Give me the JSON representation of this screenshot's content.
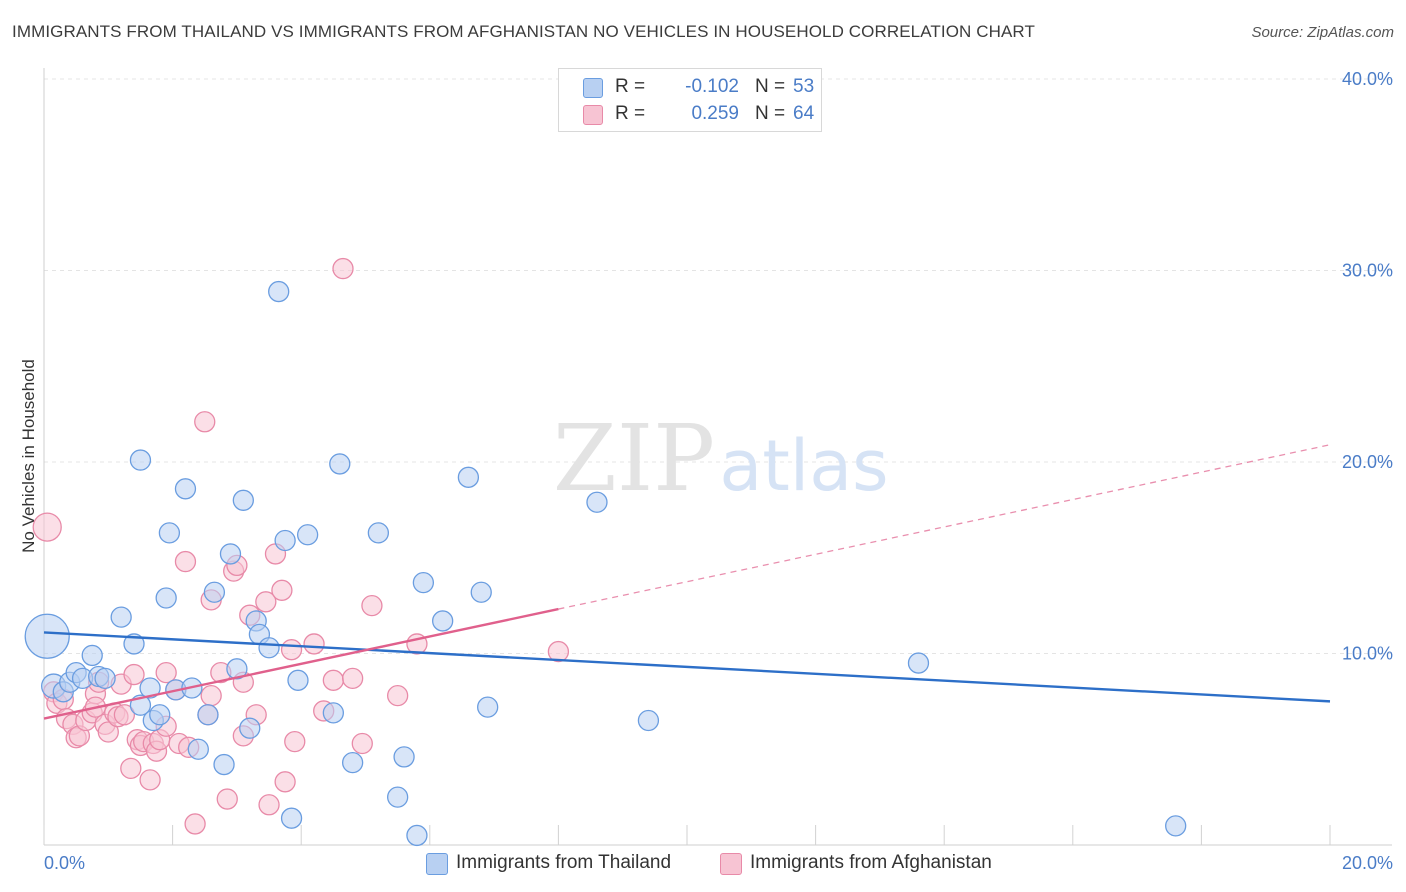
{
  "header": {
    "title": "IMMIGRANTS FROM THAILAND VS IMMIGRANTS FROM AFGHANISTAN NO VEHICLES IN HOUSEHOLD CORRELATION CHART",
    "source": "Source: ZipAtlas.com"
  },
  "watermark": {
    "zip": "ZIP",
    "atlas": "atlas"
  },
  "legend": {
    "thailand": {
      "r_label": "R =",
      "r_value": "-0.102",
      "n_label": "N =",
      "n_value": "53"
    },
    "afghanistan": {
      "r_label": "R =",
      "r_value": "0.259",
      "n_label": "N =",
      "n_value": "64"
    }
  },
  "bottom_legend": {
    "thailand": "Immigrants from Thailand",
    "afghanistan": "Immigrants from Afghanistan"
  },
  "colors": {
    "thailand_fill": "#b8d0f2",
    "thailand_stroke": "#6a9de0",
    "thailand_line": "#2d6fc8",
    "afghanistan_fill": "#f7c4d3",
    "afghanistan_stroke": "#e88aa8",
    "afghanistan_line": "#e0608c",
    "tick": "#4a7cc7"
  },
  "chart_data": {
    "type": "scatter",
    "ylabel": "No Vehicles in Household",
    "xlim": [
      0,
      20
    ],
    "ylim": [
      0,
      40
    ],
    "x_tick_labels": [
      "0.0%",
      "20.0%"
    ],
    "y_ticks": [
      10,
      20,
      30,
      40
    ],
    "y_tick_labels": [
      "10.0%",
      "20.0%",
      "30.0%",
      "40.0%"
    ],
    "grid": true,
    "legend_position": "top-center",
    "series": [
      {
        "name": "Immigrants from Thailand",
        "trend": {
          "x": [
            0,
            20
          ],
          "y": [
            11.1,
            7.5
          ],
          "solid_until": 20
        },
        "points": [
          [
            0.05,
            10.9,
            22
          ],
          [
            0.15,
            8.3,
            12
          ],
          [
            0.3,
            8.0,
            10
          ],
          [
            0.4,
            8.5,
            10
          ],
          [
            0.5,
            9.0,
            10
          ],
          [
            0.6,
            8.7,
            10
          ],
          [
            0.75,
            9.9,
            10
          ],
          [
            0.85,
            8.8,
            10
          ],
          [
            0.95,
            8.7,
            10
          ],
          [
            1.2,
            11.9,
            10
          ],
          [
            1.4,
            10.5,
            10
          ],
          [
            1.5,
            7.3,
            10
          ],
          [
            1.7,
            6.5,
            10
          ],
          [
            1.5,
            20.1,
            10
          ],
          [
            1.65,
            8.2,
            10
          ],
          [
            1.8,
            6.8,
            10
          ],
          [
            1.9,
            12.9,
            10
          ],
          [
            1.95,
            16.3,
            10
          ],
          [
            2.05,
            8.1,
            10
          ],
          [
            2.2,
            18.6,
            10
          ],
          [
            2.3,
            8.2,
            10
          ],
          [
            2.4,
            5.0,
            10
          ],
          [
            2.55,
            6.8,
            10
          ],
          [
            2.65,
            13.2,
            10
          ],
          [
            2.8,
            4.2,
            10
          ],
          [
            2.9,
            15.2,
            10
          ],
          [
            3.0,
            9.2,
            10
          ],
          [
            3.1,
            18.0,
            10
          ],
          [
            3.2,
            6.1,
            10
          ],
          [
            3.3,
            11.7,
            10
          ],
          [
            3.35,
            11.0,
            10
          ],
          [
            3.5,
            10.3,
            10
          ],
          [
            3.65,
            28.9,
            10
          ],
          [
            3.75,
            15.9,
            10
          ],
          [
            3.85,
            1.4,
            10
          ],
          [
            3.95,
            8.6,
            10
          ],
          [
            4.1,
            16.2,
            10
          ],
          [
            4.5,
            6.9,
            10
          ],
          [
            4.6,
            19.9,
            10
          ],
          [
            4.8,
            4.3,
            10
          ],
          [
            5.2,
            16.3,
            10
          ],
          [
            5.5,
            2.5,
            10
          ],
          [
            5.6,
            4.6,
            10
          ],
          [
            5.8,
            0.5,
            10
          ],
          [
            5.9,
            13.7,
            10
          ],
          [
            6.2,
            11.7,
            10
          ],
          [
            6.6,
            19.2,
            10
          ],
          [
            6.8,
            13.2,
            10
          ],
          [
            6.9,
            7.2,
            10
          ],
          [
            8.6,
            17.9,
            10
          ],
          [
            9.4,
            6.5,
            10
          ],
          [
            13.6,
            9.5,
            10
          ],
          [
            17.6,
            1.0,
            10
          ]
        ]
      },
      {
        "name": "Immigrants from Afghanistan",
        "trend": {
          "x": [
            0,
            20
          ],
          "y": [
            6.6,
            20.9
          ],
          "solid_until": 8
        },
        "points": [
          [
            0.05,
            16.6,
            14
          ],
          [
            0.15,
            8.0,
            10
          ],
          [
            0.2,
            7.4,
            10
          ],
          [
            0.3,
            7.6,
            10
          ],
          [
            0.35,
            6.6,
            10
          ],
          [
            0.45,
            6.3,
            10
          ],
          [
            0.5,
            5.6,
            10
          ],
          [
            0.55,
            5.7,
            10
          ],
          [
            0.65,
            6.5,
            10
          ],
          [
            0.75,
            6.9,
            10
          ],
          [
            0.8,
            7.9,
            10
          ],
          [
            0.85,
            8.5,
            10
          ],
          [
            0.95,
            6.3,
            10
          ],
          [
            1.0,
            5.9,
            10
          ],
          [
            1.1,
            6.9,
            10
          ],
          [
            1.15,
            6.7,
            10
          ],
          [
            1.2,
            8.4,
            10
          ],
          [
            1.25,
            6.8,
            10
          ],
          [
            1.35,
            4.0,
            10
          ],
          [
            1.4,
            8.9,
            10
          ],
          [
            1.45,
            5.5,
            10
          ],
          [
            1.5,
            5.2,
            10
          ],
          [
            1.55,
            5.4,
            10
          ],
          [
            1.65,
            3.4,
            10
          ],
          [
            1.7,
            5.3,
            10
          ],
          [
            1.75,
            4.9,
            10
          ],
          [
            1.8,
            5.5,
            10
          ],
          [
            1.9,
            6.2,
            10
          ],
          [
            2.05,
            8.1,
            10
          ],
          [
            2.1,
            5.3,
            10
          ],
          [
            2.2,
            14.8,
            10
          ],
          [
            2.25,
            5.1,
            10
          ],
          [
            2.35,
            1.1,
            10
          ],
          [
            2.5,
            22.1,
            10
          ],
          [
            2.55,
            6.8,
            10
          ],
          [
            2.6,
            12.8,
            10
          ],
          [
            2.75,
            9.0,
            10
          ],
          [
            2.85,
            2.4,
            10
          ],
          [
            2.95,
            14.3,
            10
          ],
          [
            3.0,
            14.6,
            10
          ],
          [
            3.1,
            5.7,
            10
          ],
          [
            3.1,
            8.5,
            10
          ],
          [
            3.3,
            6.8,
            10
          ],
          [
            3.45,
            12.7,
            10
          ],
          [
            3.5,
            2.1,
            10
          ],
          [
            3.6,
            15.2,
            10
          ],
          [
            3.7,
            13.3,
            10
          ],
          [
            3.75,
            3.3,
            10
          ],
          [
            3.85,
            10.2,
            10
          ],
          [
            3.9,
            5.4,
            10
          ],
          [
            4.35,
            7.0,
            10
          ],
          [
            4.5,
            8.6,
            10
          ],
          [
            4.65,
            30.1,
            10
          ],
          [
            4.8,
            8.7,
            10
          ],
          [
            4.95,
            5.3,
            10
          ],
          [
            5.1,
            12.5,
            10
          ],
          [
            5.5,
            7.8,
            10
          ],
          [
            5.8,
            10.5,
            10
          ],
          [
            8.0,
            10.1,
            10
          ],
          [
            0.8,
            7.2,
            10
          ],
          [
            1.9,
            9.0,
            10
          ],
          [
            2.6,
            7.8,
            10
          ],
          [
            3.2,
            12.0,
            10
          ],
          [
            4.2,
            10.5,
            10
          ]
        ]
      }
    ]
  }
}
